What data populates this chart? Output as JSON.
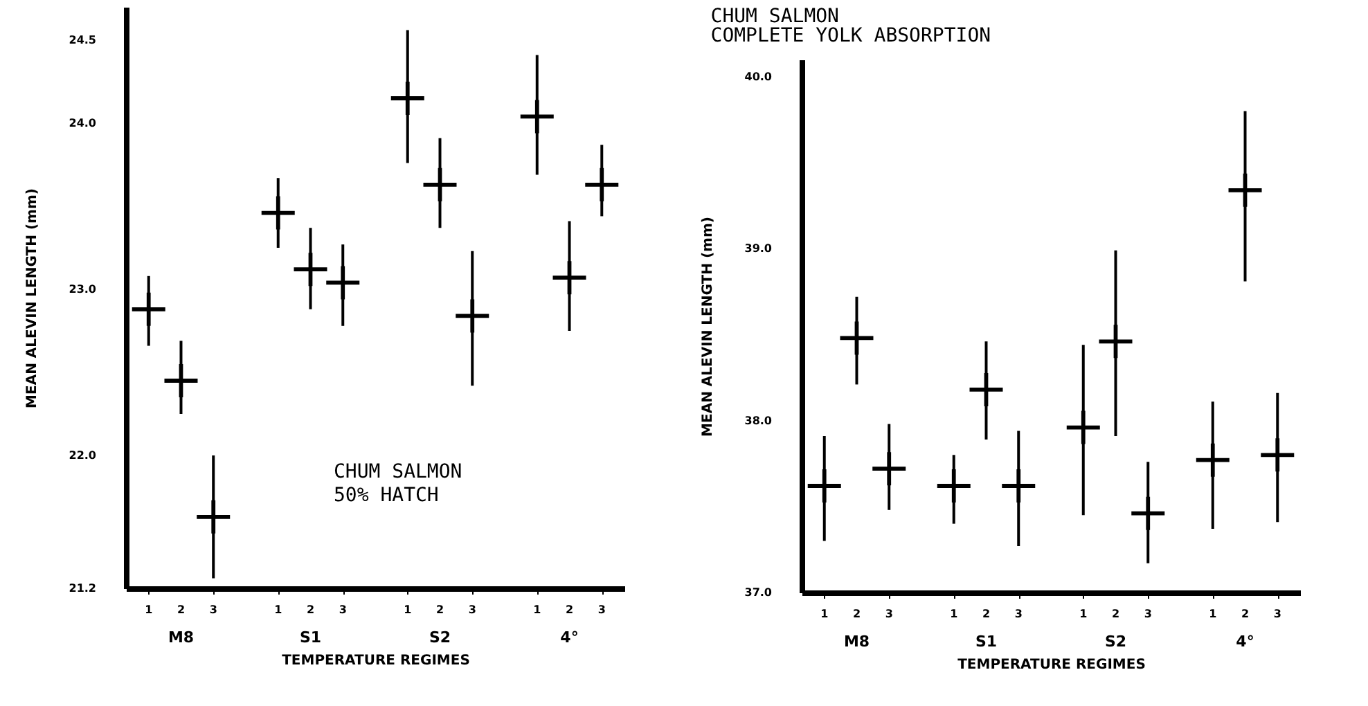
{
  "chart_data": [
    {
      "type": "scatter",
      "title": "CHUM SALMON",
      "subtitle": "50% HATCH",
      "xlabel": "TEMPERATURE REGIMES",
      "ylabel": "MEAN ALEVIN LENGTH (mm)",
      "categories": [
        "1",
        "2",
        "3",
        null,
        "1",
        "2",
        "3",
        null,
        "1",
        "2",
        "3",
        null,
        "1",
        "2",
        "3"
      ],
      "annotations": [
        "M8",
        "S1",
        "S2",
        "4°"
      ],
      "series": [
        {
          "color": "#000000",
          "values": [
            22.88,
            22.45,
            21.63,
            null,
            23.46,
            23.12,
            23.04,
            null,
            24.15,
            23.63,
            22.84,
            null,
            24.04,
            23.07,
            23.63
          ],
          "errors": [
            [
              22.66,
              23.08
            ],
            [
              22.25,
              22.69
            ],
            [
              21.26,
              22.0
            ],
            null,
            [
              23.25,
              23.67
            ],
            [
              22.88,
              23.37
            ],
            [
              22.78,
              23.27
            ],
            null,
            [
              23.76,
              24.56
            ],
            [
              23.37,
              23.91
            ],
            [
              22.42,
              23.23
            ],
            null,
            [
              23.69,
              24.41
            ],
            [
              22.75,
              23.41
            ],
            [
              23.44,
              23.87
            ]
          ]
        }
      ],
      "ylim": [
        21.2,
        24.7
      ],
      "yticks": [
        21.2,
        {
          "value": 22.0,
          "label": "22.0"
        },
        {
          "value": 23.0,
          "label": "23.0"
        },
        {
          "value": 24.0,
          "label": "24.0"
        },
        24.5
      ],
      "grid": false,
      "legend": false,
      "marker": "cross"
    },
    {
      "type": "scatter",
      "title": "CHUM SALMON",
      "subtitle": "COMPLETE YOLK ABSORPTION",
      "xlabel": "TEMPERATURE REGIMES",
      "ylabel": "MEAN ALEVIN LENGTH (mm)",
      "categories": [
        "1",
        "2",
        "3",
        null,
        "1",
        "2",
        "3",
        null,
        "1",
        "2",
        "3",
        null,
        "1",
        "2",
        "3"
      ],
      "annotations": [
        "M8",
        "S1",
        "S2",
        "4°"
      ],
      "series": [
        {
          "color": "#000000",
          "values": [
            37.62,
            38.48,
            37.72,
            null,
            37.62,
            38.18,
            37.62,
            null,
            37.96,
            38.46,
            37.46,
            null,
            37.77,
            39.34,
            37.8
          ],
          "errors": [
            [
              37.3,
              37.91
            ],
            [
              38.21,
              38.72
            ],
            [
              37.48,
              37.98
            ],
            null,
            [
              37.4,
              37.8
            ],
            [
              37.89,
              38.46
            ],
            [
              37.27,
              37.94
            ],
            null,
            [
              37.45,
              38.44
            ],
            [
              37.91,
              38.99
            ],
            [
              37.17,
              37.76
            ],
            null,
            [
              37.37,
              38.11
            ],
            [
              38.81,
              39.8
            ],
            [
              37.41,
              38.16
            ]
          ]
        }
      ],
      "ylim": [
        37.0,
        40.1
      ],
      "yticks": [
        {
          "value": 37.0,
          "label": "37.0"
        },
        {
          "value": 38.0,
          "label": "38.0"
        },
        {
          "value": 39.0,
          "label": "39.0"
        },
        {
          "value": 40.0,
          "label": "40.0"
        }
      ],
      "grid": false,
      "legend": false,
      "marker": "cross"
    }
  ]
}
